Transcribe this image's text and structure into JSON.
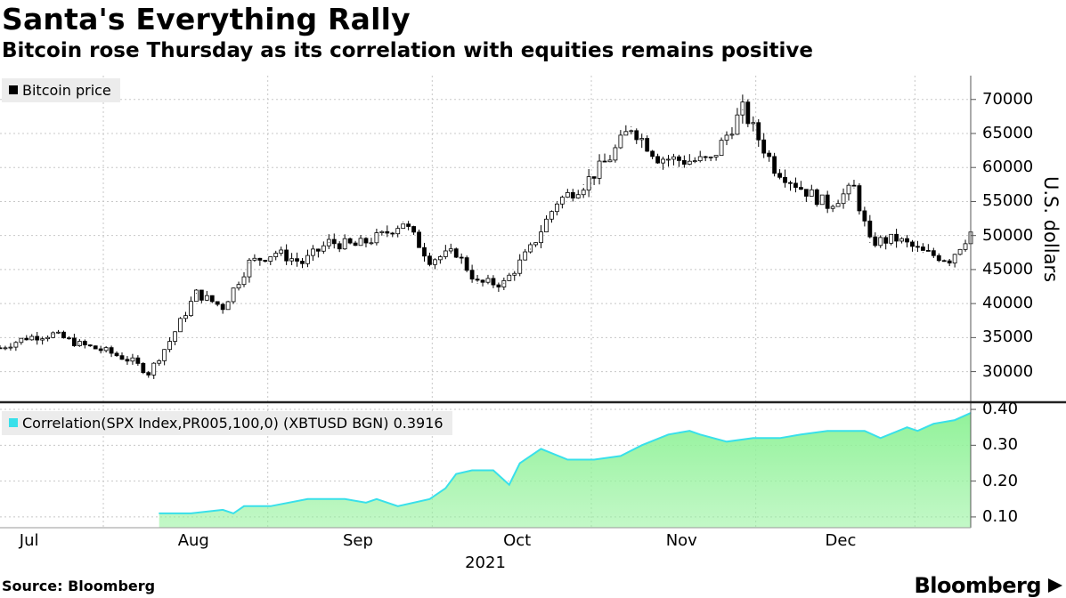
{
  "header": {
    "title": "Santa's Everything Rally",
    "subtitle": "Bitcoin rose Thursday as its correlation with equities remains positive"
  },
  "footer": {
    "source": "Source: Bloomberg",
    "brand": "Bloomberg"
  },
  "colors": {
    "candle": "#000000",
    "correlation_line": "#39e0ea",
    "correlation_fill": "#92f29a",
    "grid": "#c8c8c8",
    "legend_bg": "#ececec"
  },
  "chart_data": [
    {
      "type": "line",
      "chart_style": "candlestick",
      "legend": "Bitcoin price",
      "legend_position": "top-left",
      "ylabel": "U.S. dollars",
      "ylim": [
        25500,
        73500
      ],
      "yticks": [
        30000,
        35000,
        40000,
        45000,
        50000,
        55000,
        60000,
        65000,
        70000
      ],
      "ytick_labels": [
        "30000",
        "35000",
        "40000",
        "45000",
        "50000",
        "55000",
        "60000",
        "65000",
        "70000"
      ],
      "xlim": [
        "2021-06-23",
        "2021-12-23"
      ],
      "grid": true,
      "x": [
        "2021-06-23",
        "2021-06-28",
        "2021-07-03",
        "2021-07-08",
        "2021-07-13",
        "2021-07-18",
        "2021-07-21",
        "2021-07-25",
        "2021-07-30",
        "2021-08-04",
        "2021-08-09",
        "2021-08-14",
        "2021-08-19",
        "2021-08-24",
        "2021-08-29",
        "2021-09-03",
        "2021-09-07",
        "2021-09-12",
        "2021-09-17",
        "2021-09-21",
        "2021-09-26",
        "2021-10-01",
        "2021-10-06",
        "2021-10-11",
        "2021-10-16",
        "2021-10-20",
        "2021-10-25",
        "2021-10-30",
        "2021-11-04",
        "2021-11-10",
        "2021-11-16",
        "2021-11-21",
        "2021-11-26",
        "2021-12-01",
        "2021-12-04",
        "2021-12-09",
        "2021-12-14",
        "2021-12-19",
        "2021-12-23"
      ],
      "values": [
        33500,
        35000,
        35500,
        34000,
        33000,
        31500,
        29800,
        34500,
        41500,
        39500,
        46000,
        47500,
        46000,
        49000,
        48500,
        50000,
        52000,
        46500,
        47500,
        43000,
        43000,
        48000,
        55000,
        57500,
        61500,
        66000,
        61500,
        61000,
        61000,
        68500,
        60000,
        57000,
        54500,
        57000,
        49000,
        49500,
        47500,
        46500,
        50500
      ]
    },
    {
      "type": "area",
      "legend": "Correlation(SPX Index,PR005,100,0) (XBTUSD BGN) 0.3916",
      "legend_position": "top-left",
      "ylim": [
        0.07,
        0.42
      ],
      "yticks": [
        0.1,
        0.2,
        0.3,
        0.4
      ],
      "ytick_labels": [
        "0.10",
        "0.20",
        "0.30",
        "0.40"
      ],
      "xlabel": "2021",
      "xtick_labels": [
        "Jul",
        "Aug",
        "Sep",
        "Oct",
        "Nov",
        "Dec"
      ],
      "xticks": [
        "2021-07-01",
        "2021-08-01",
        "2021-09-01",
        "2021-10-01",
        "2021-11-01",
        "2021-12-01"
      ],
      "grid": true,
      "x": [
        "2021-07-23",
        "2021-07-29",
        "2021-08-04",
        "2021-08-06",
        "2021-08-08",
        "2021-08-13",
        "2021-08-20",
        "2021-08-27",
        "2021-08-31",
        "2021-09-02",
        "2021-09-06",
        "2021-09-12",
        "2021-09-15",
        "2021-09-17",
        "2021-09-20",
        "2021-09-24",
        "2021-09-27",
        "2021-09-29",
        "2021-10-03",
        "2021-10-08",
        "2021-10-13",
        "2021-10-18",
        "2021-10-22",
        "2021-10-27",
        "2021-10-31",
        "2021-11-02",
        "2021-11-07",
        "2021-11-12",
        "2021-11-17",
        "2021-11-21",
        "2021-11-26",
        "2021-11-30",
        "2021-12-03",
        "2021-12-06",
        "2021-12-11",
        "2021-12-13",
        "2021-12-16",
        "2021-12-20",
        "2021-12-23"
      ],
      "values": [
        0.11,
        0.11,
        0.12,
        0.11,
        0.13,
        0.13,
        0.15,
        0.15,
        0.14,
        0.15,
        0.13,
        0.15,
        0.18,
        0.22,
        0.23,
        0.23,
        0.19,
        0.25,
        0.29,
        0.26,
        0.26,
        0.27,
        0.3,
        0.33,
        0.34,
        0.33,
        0.31,
        0.32,
        0.32,
        0.33,
        0.34,
        0.34,
        0.34,
        0.32,
        0.35,
        0.34,
        0.36,
        0.37,
        0.39
      ]
    }
  ]
}
